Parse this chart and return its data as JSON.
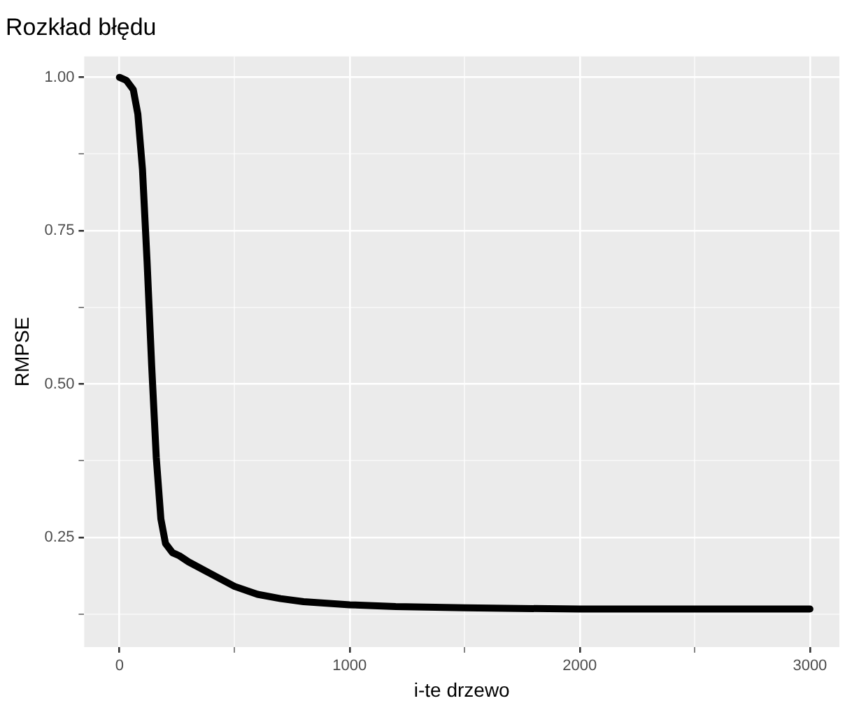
{
  "chart_data": {
    "type": "line",
    "title": "Rozkład błędu",
    "xlabel": "i-te drzewo",
    "ylabel": "RMPSE",
    "x": [
      0,
      30,
      60,
      80,
      100,
      120,
      140,
      160,
      180,
      200,
      230,
      260,
      300,
      400,
      500,
      600,
      700,
      800,
      1000,
      1200,
      1500,
      2000,
      2500,
      3000
    ],
    "series": [
      {
        "color": "#000000",
        "values": [
          1.0,
          0.995,
          0.98,
          0.94,
          0.85,
          0.7,
          0.53,
          0.38,
          0.28,
          0.24,
          0.225,
          0.22,
          0.21,
          0.19,
          0.17,
          0.157,
          0.15,
          0.145,
          0.14,
          0.137,
          0.135,
          0.133,
          0.133,
          0.133
        ]
      }
    ],
    "xlim": [
      -153,
      3128
    ],
    "ylim": [
      0.071,
      1.034
    ],
    "xticks": [
      0,
      {
        "value": 500,
        "label": null
      },
      1000,
      {
        "value": 1500,
        "label": null
      },
      2000,
      {
        "value": 2500,
        "label": null
      },
      3000
    ],
    "yticks": [
      {
        "value": 0.125,
        "label": null
      },
      {
        "value": 0.25,
        "label": "0.25"
      },
      {
        "value": 0.375,
        "label": null
      },
      {
        "value": 0.5,
        "label": "0.50"
      },
      {
        "value": 0.625,
        "label": null
      },
      {
        "value": 0.75,
        "label": "0.75"
      },
      {
        "value": 0.875,
        "label": null
      },
      {
        "value": 1.0,
        "label": "1.00"
      }
    ],
    "grid": true,
    "legend": false,
    "marker": "none",
    "line_style": "solid"
  }
}
